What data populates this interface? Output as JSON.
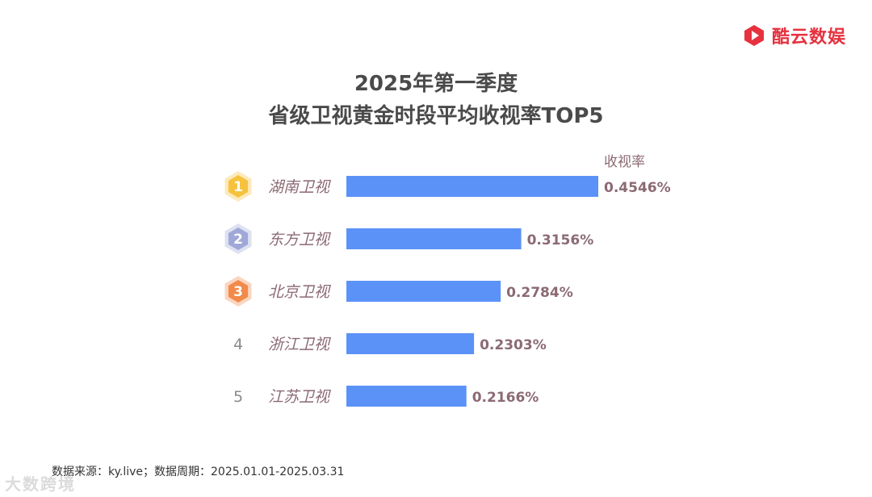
{
  "brand": {
    "name": "酷云数娱",
    "logo_icon": "play-hexagon-icon",
    "color": "#e6323f"
  },
  "chart_data": {
    "type": "bar",
    "orientation": "horizontal",
    "title": [
      "2025年第一季度",
      "省级卫视黄金时段平均收视率TOP5"
    ],
    "value_label": "收视率",
    "categories": [
      "湖南卫视",
      "东方卫视",
      "北京卫视",
      "浙江卫视",
      "江苏卫视"
    ],
    "values": [
      0.4546,
      0.3156,
      0.2784,
      0.2303,
      0.2166
    ],
    "value_labels": [
      "0.4546%",
      "0.3156%",
      "0.2784%",
      "0.2303%",
      "0.2166%"
    ],
    "ranks": [
      "1",
      "2",
      "3",
      "4",
      "5"
    ],
    "rank_badges": [
      "gold-hexagon-icon",
      "silver-hexagon-icon",
      "bronze-hexagon-icon",
      null,
      null
    ],
    "xlim": [
      0,
      0.4546
    ],
    "grid": false,
    "bar_color": "#5b92f7",
    "badge_colors": {
      "gold": "#f6c23e",
      "silver": "#9fa8d6",
      "bronze": "#f28a4a"
    },
    "category_text_color": "#8b6a73"
  },
  "footer": {
    "source": "数据来源：ky.live；数据周期：2025.01.01-2025.03.31",
    "watermark": "大数跨境"
  }
}
